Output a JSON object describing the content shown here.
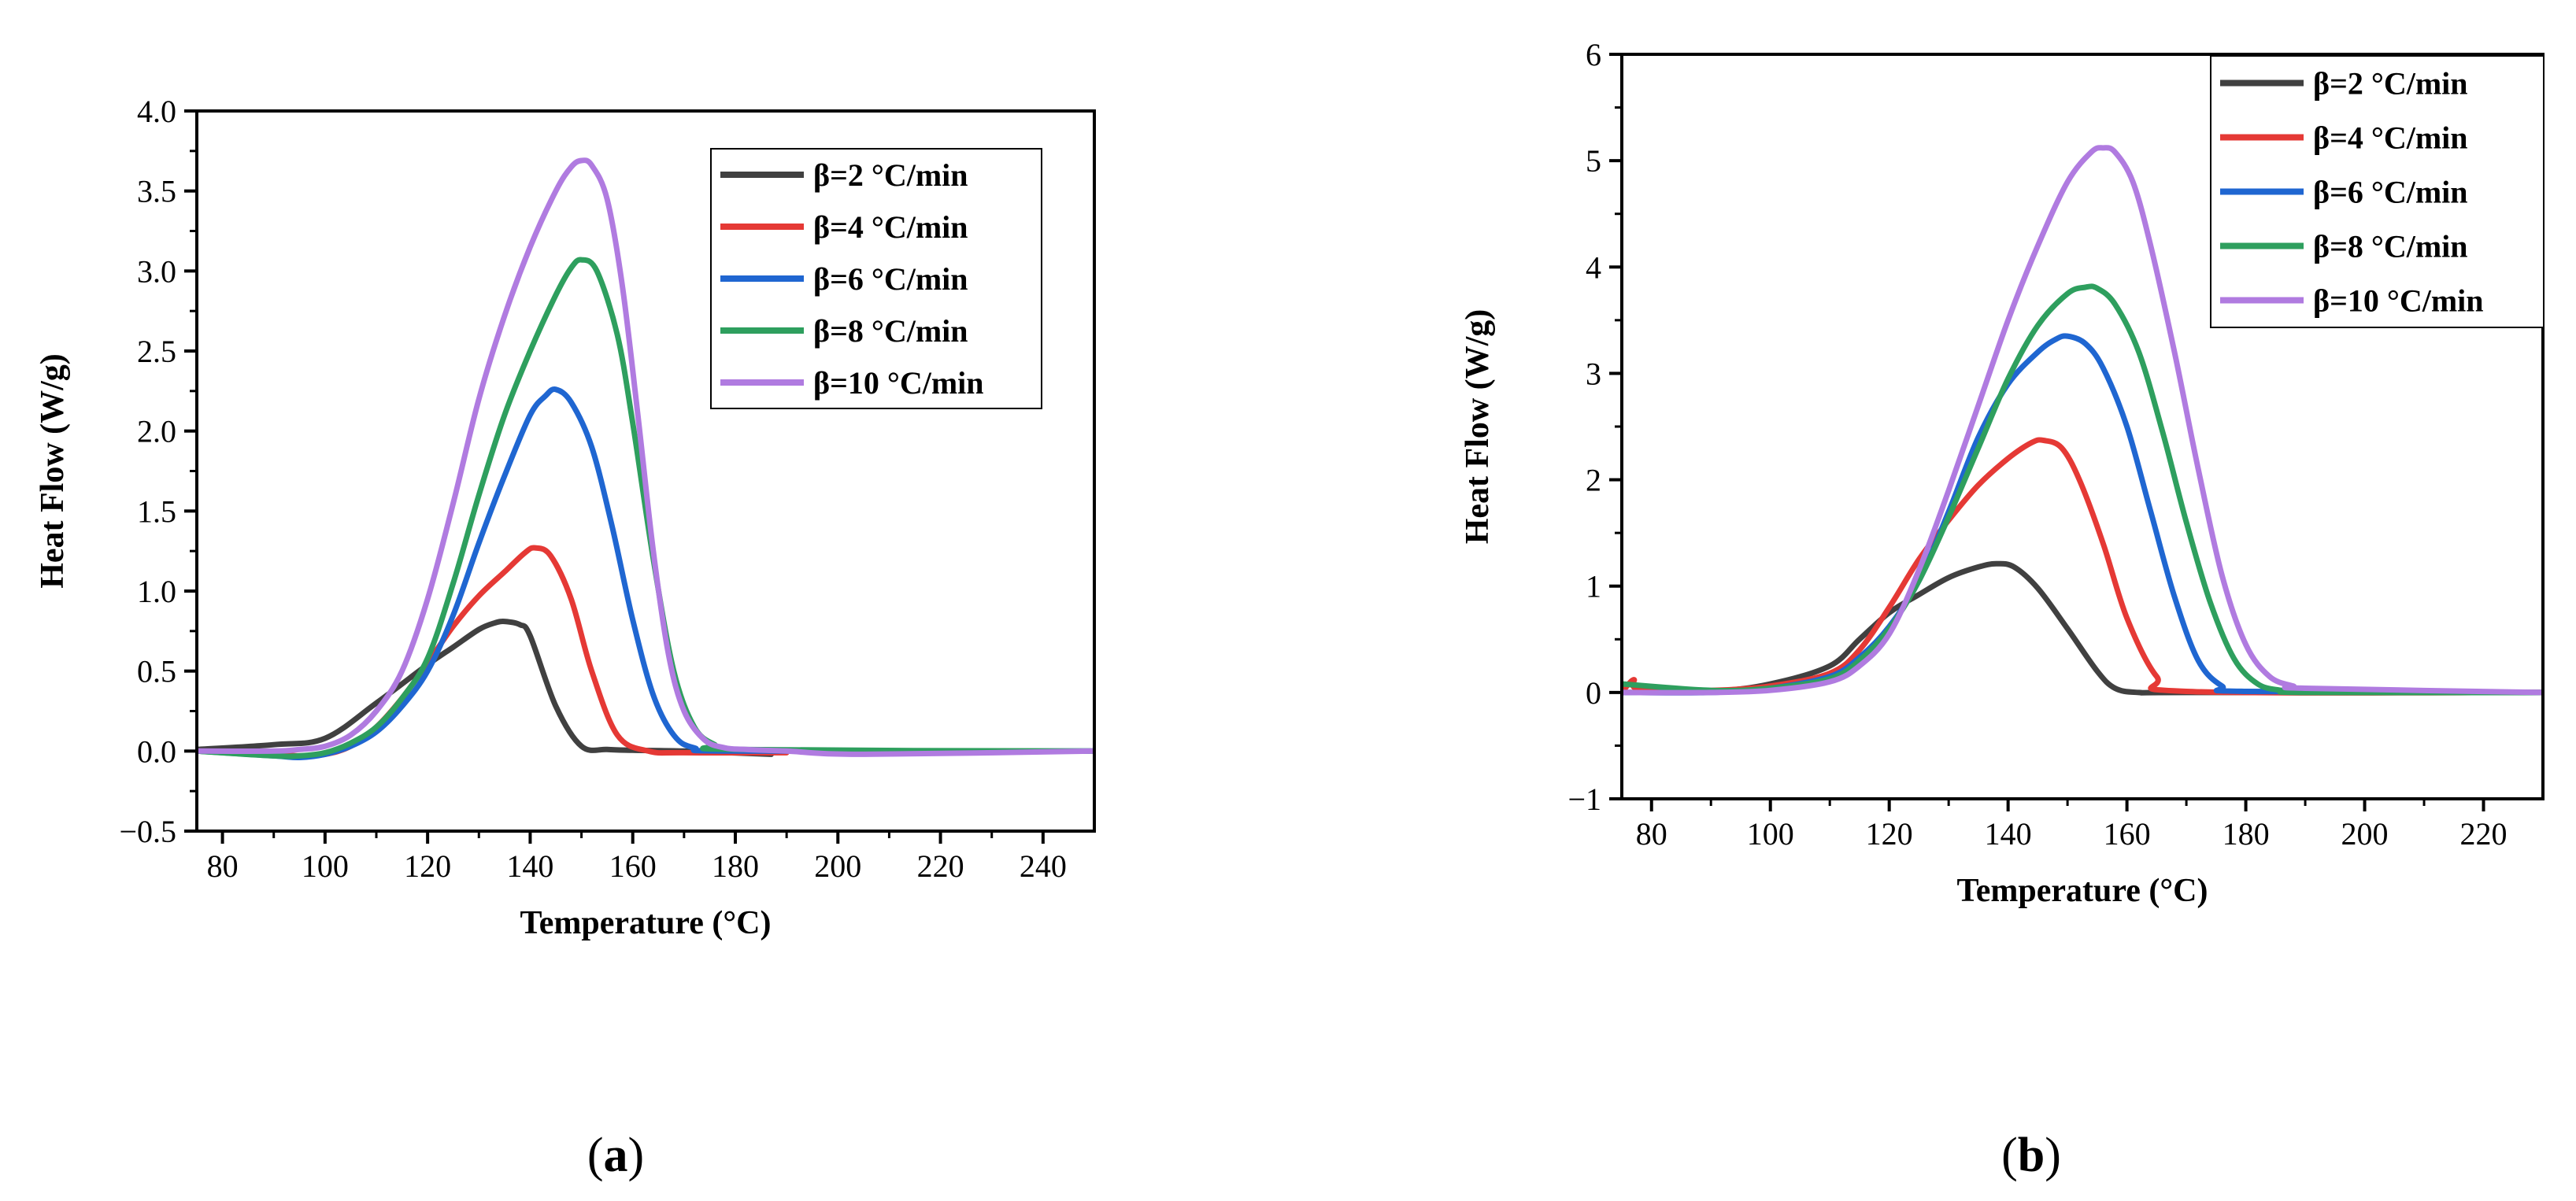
{
  "chart_data": [
    {
      "type": "line",
      "panel_label": "a",
      "xlabel": "Temperature (°C)",
      "ylabel": "Heat Flow (W/g)",
      "xlim": [
        75,
        250
      ],
      "ylim": [
        -0.5,
        4.0
      ],
      "xticks": [
        80,
        100,
        120,
        140,
        160,
        180,
        200,
        220,
        240
      ],
      "yticks": [
        -0.5,
        0.0,
        0.5,
        1.0,
        1.5,
        2.0,
        2.5,
        3.0,
        3.5,
        4.0
      ],
      "ytick_labels": [
        "−0.5",
        "0.0",
        "0.5",
        "1.0",
        "1.5",
        "2.0",
        "2.5",
        "3.0",
        "3.5",
        "4.0"
      ],
      "legend_position": "top-right",
      "series": [
        {
          "name": "β=2 °C/min",
          "color": "#404040",
          "x": [
            75,
            90,
            100,
            110,
            120,
            125,
            130,
            133,
            135,
            138,
            140,
            145,
            150,
            155,
            160,
            170,
            187
          ],
          "y": [
            0.01,
            0.04,
            0.08,
            0.3,
            0.54,
            0.65,
            0.76,
            0.8,
            0.81,
            0.79,
            0.72,
            0.28,
            0.03,
            0.01,
            0.005,
            0.0,
            -0.02
          ]
        },
        {
          "name": "β=4 °C/min",
          "color": "#e53935",
          "x": [
            75,
            90,
            95,
            100,
            105,
            110,
            115,
            120,
            125,
            130,
            135,
            139,
            141,
            144,
            148,
            152,
            157,
            163,
            170,
            190
          ],
          "y": [
            0.0,
            -0.02,
            -0.03,
            -0.02,
            0.03,
            0.15,
            0.33,
            0.55,
            0.78,
            0.97,
            1.12,
            1.24,
            1.27,
            1.22,
            0.95,
            0.5,
            0.1,
            0.0,
            -0.01,
            -0.01
          ]
        },
        {
          "name": "β=6 °C/min",
          "color": "#1f66d1",
          "x": [
            75,
            90,
            95,
            100,
            105,
            110,
            115,
            120,
            125,
            130,
            135,
            140,
            143,
            145,
            148,
            152,
            156,
            160,
            164,
            168,
            172,
            180,
            250
          ],
          "y": [
            0.0,
            -0.03,
            -0.04,
            -0.02,
            0.03,
            0.12,
            0.28,
            0.5,
            0.85,
            1.3,
            1.72,
            2.1,
            2.22,
            2.26,
            2.18,
            1.9,
            1.4,
            0.82,
            0.35,
            0.1,
            0.02,
            0.0,
            0.0
          ]
        },
        {
          "name": "β=8 °C/min",
          "color": "#2e9f5e",
          "x": [
            75,
            90,
            95,
            100,
            105,
            110,
            115,
            120,
            125,
            130,
            135,
            140,
            145,
            148,
            150,
            153,
            157,
            160,
            164,
            168,
            172,
            176,
            180,
            250
          ],
          "y": [
            0.0,
            -0.03,
            -0.03,
            -0.01,
            0.05,
            0.15,
            0.33,
            0.58,
            1.05,
            1.6,
            2.1,
            2.5,
            2.85,
            3.02,
            3.07,
            3.0,
            2.6,
            2.05,
            1.2,
            0.5,
            0.15,
            0.04,
            0.01,
            0.0
          ]
        },
        {
          "name": "β=10 °C/min",
          "color": "#b07be0",
          "x": [
            75,
            90,
            95,
            100,
            105,
            110,
            115,
            120,
            125,
            130,
            135,
            140,
            145,
            148,
            150,
            152,
            155,
            158,
            161,
            164,
            167,
            170,
            174,
            178,
            182,
            190,
            205,
            250
          ],
          "y": [
            0.0,
            0.0,
            0.01,
            0.03,
            0.1,
            0.25,
            0.5,
            0.95,
            1.55,
            2.2,
            2.72,
            3.15,
            3.5,
            3.65,
            3.69,
            3.66,
            3.45,
            2.9,
            2.1,
            1.25,
            0.6,
            0.25,
            0.07,
            0.02,
            0.01,
            0.0,
            -0.02,
            0.0
          ]
        }
      ]
    },
    {
      "type": "line",
      "panel_label": "b",
      "xlabel": "Temperature (°C)",
      "ylabel": "Heat Flow (W/g)",
      "xlim": [
        75,
        230
      ],
      "ylim": [
        -1,
        6
      ],
      "xticks": [
        80,
        100,
        120,
        140,
        160,
        180,
        200,
        220
      ],
      "yticks": [
        -1,
        0,
        1,
        2,
        3,
        4,
        5,
        6
      ],
      "ytick_labels": [
        "−1",
        "0",
        "1",
        "2",
        "3",
        "4",
        "5",
        "6"
      ],
      "legend_position": "top-right",
      "series": [
        {
          "name": "β=2 °C/min",
          "color": "#404040",
          "x": [
            75,
            90,
            100,
            110,
            115,
            120,
            125,
            130,
            135,
            138,
            141,
            145,
            150,
            155,
            158,
            162,
            170,
            230
          ],
          "y": [
            0.0,
            0.01,
            0.08,
            0.25,
            0.5,
            0.75,
            0.92,
            1.08,
            1.18,
            1.21,
            1.18,
            0.98,
            0.6,
            0.2,
            0.04,
            0.0,
            0.0,
            0.0
          ]
        },
        {
          "name": "β=4 °C/min",
          "color": "#e53935",
          "x": [
            75,
            77,
            78,
            90,
            100,
            110,
            115,
            120,
            125,
            130,
            135,
            140,
            144,
            146,
            149,
            152,
            156,
            160,
            165,
            170,
            230
          ],
          "y": [
            0.0,
            0.12,
            0.03,
            0.02,
            0.06,
            0.18,
            0.4,
            0.8,
            1.25,
            1.62,
            1.95,
            2.2,
            2.35,
            2.37,
            2.3,
            2.0,
            1.4,
            0.7,
            0.15,
            0.01,
            0.0
          ]
        },
        {
          "name": "β=6 °C/min",
          "color": "#1f66d1",
          "x": [
            75,
            90,
            100,
            110,
            115,
            120,
            125,
            130,
            135,
            140,
            145,
            148,
            150,
            153,
            156,
            160,
            164,
            168,
            172,
            176,
            180,
            230
          ],
          "y": [
            0.0,
            0.0,
            0.04,
            0.15,
            0.33,
            0.62,
            1.05,
            1.7,
            2.4,
            2.9,
            3.2,
            3.32,
            3.35,
            3.28,
            3.05,
            2.5,
            1.7,
            0.9,
            0.3,
            0.06,
            0.01,
            0.0
          ]
        },
        {
          "name": "β=8 °C/min",
          "color": "#2e9f5e",
          "x": [
            75,
            90,
            100,
            110,
            115,
            120,
            125,
            130,
            135,
            140,
            145,
            150,
            153,
            155,
            158,
            162,
            166,
            170,
            174,
            178,
            182,
            186,
            190,
            230
          ],
          "y": [
            0.08,
            0.02,
            0.04,
            0.13,
            0.3,
            0.6,
            1.05,
            1.65,
            2.3,
            2.95,
            3.45,
            3.75,
            3.81,
            3.8,
            3.65,
            3.2,
            2.45,
            1.6,
            0.85,
            0.32,
            0.08,
            0.02,
            0.0,
            0.0
          ]
        },
        {
          "name": "β=10 °C/min",
          "color": "#b07be0",
          "x": [
            75,
            90,
            100,
            110,
            115,
            120,
            125,
            130,
            135,
            140,
            145,
            150,
            154,
            156,
            158,
            161,
            164,
            168,
            172,
            176,
            180,
            184,
            188,
            190,
            230
          ],
          "y": [
            0.0,
            0.0,
            0.02,
            0.1,
            0.25,
            0.55,
            1.15,
            1.9,
            2.7,
            3.5,
            4.2,
            4.8,
            5.08,
            5.12,
            5.08,
            4.8,
            4.2,
            3.2,
            2.1,
            1.1,
            0.45,
            0.15,
            0.06,
            0.04,
            0.0
          ]
        }
      ]
    }
  ]
}
